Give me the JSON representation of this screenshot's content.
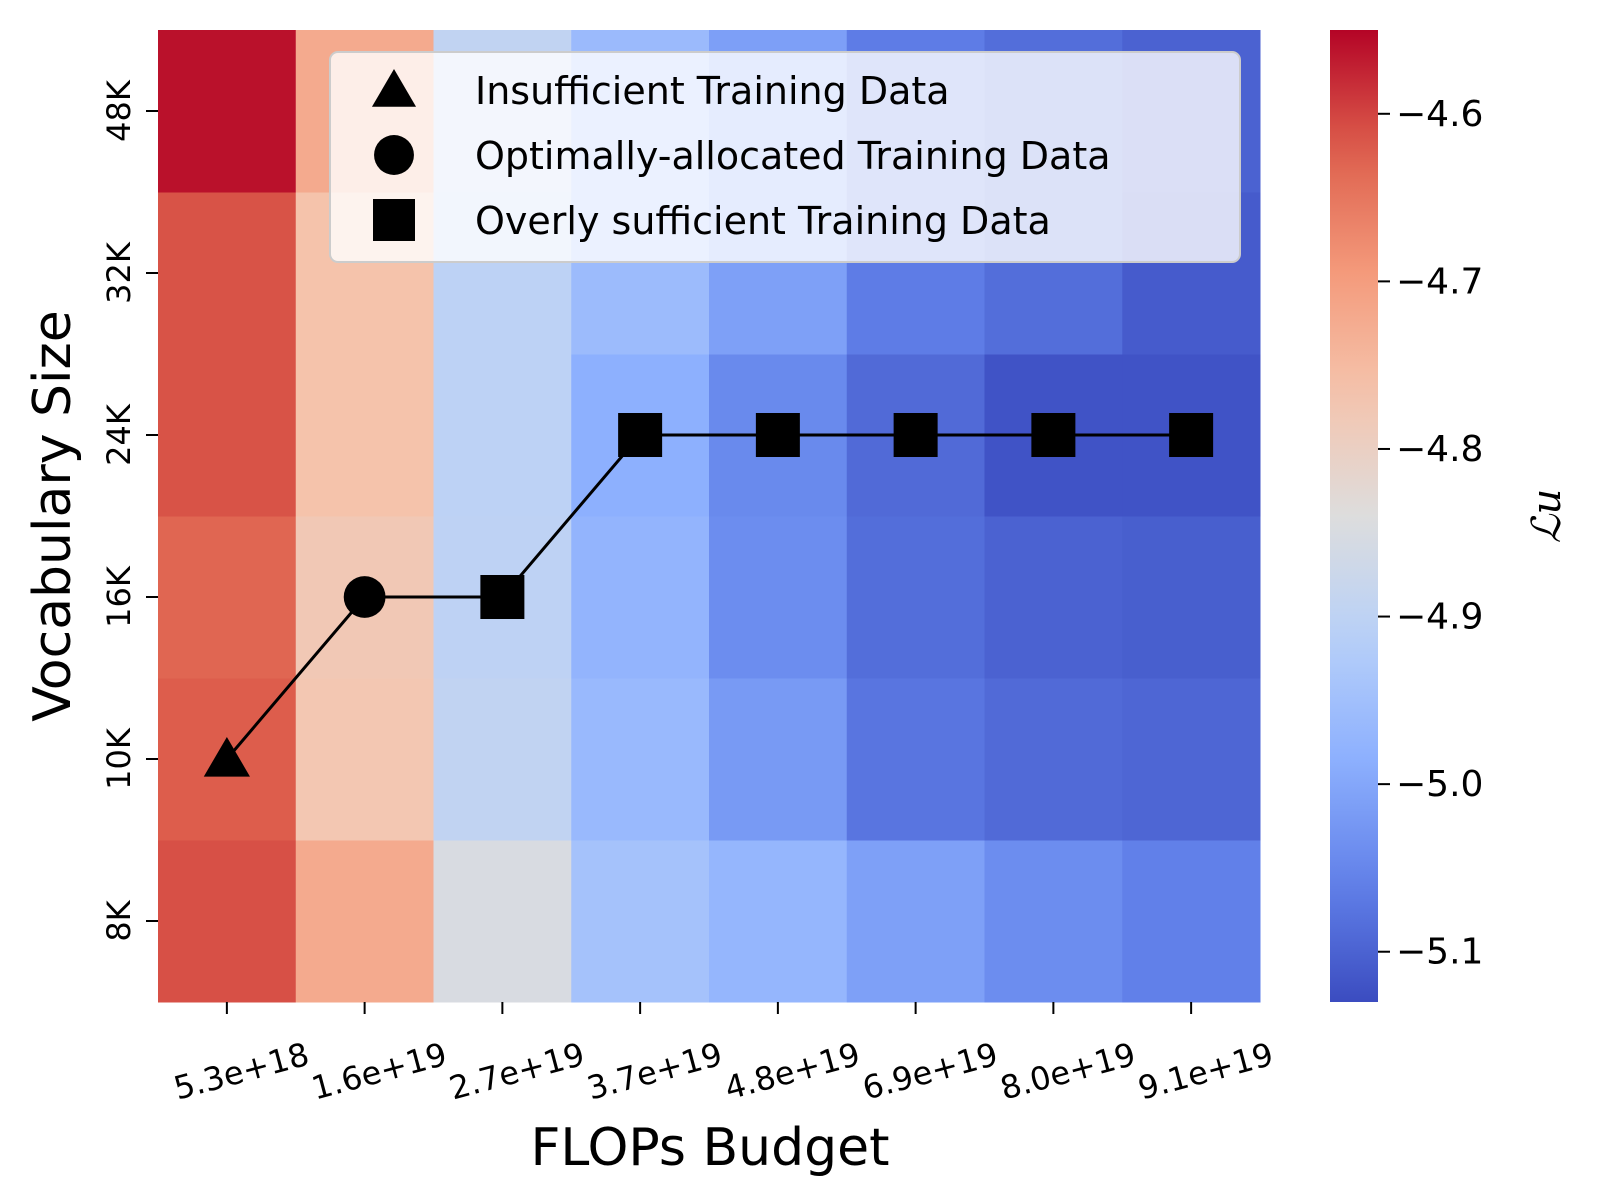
{
  "chart_data": {
    "type": "heatmap",
    "title": "",
    "xlabel": "FLOPs Budget",
    "ylabel": "Vocabulary Size",
    "x_categories": [
      "5.3e+18",
      "1.6e+19",
      "2.7e+19",
      "3.7e+19",
      "4.8e+19",
      "6.9e+19",
      "8.0e+19",
      "9.1e+19"
    ],
    "y_categories": [
      "8K",
      "10K",
      "16K",
      "24K",
      "32K",
      "48K"
    ],
    "values": [
      [
        -4.61,
        -4.722,
        -4.85,
        -4.945,
        -4.972,
        -5.01,
        -5.04,
        -5.06
      ],
      [
        -4.62,
        -4.775,
        -4.895,
        -4.965,
        -5.02,
        -5.075,
        -5.09,
        -5.095
      ],
      [
        -4.63,
        -4.78,
        -4.9,
        -4.975,
        -5.04,
        -5.085,
        -5.1,
        -5.105
      ],
      [
        -4.612,
        -4.765,
        -4.903,
        -4.985,
        -5.045,
        -5.09,
        -5.12,
        -5.12
      ],
      [
        -4.612,
        -4.765,
        -4.903,
        -4.96,
        -5.01,
        -5.065,
        -5.085,
        -5.11
      ],
      [
        -4.56,
        -4.722,
        -4.895,
        -4.962,
        -5.012,
        -5.065,
        -5.085,
        -5.1
      ]
    ],
    "colorbar": {
      "label": "ℒu",
      "colormap": "coolwarm",
      "vmin": -5.13,
      "vmax": -4.55,
      "ticks": [
        "−4.6",
        "−4.7",
        "−4.8",
        "−4.9",
        "−5.0",
        "−5.1"
      ],
      "tick_values": [
        -4.6,
        -4.7,
        -4.8,
        -4.9,
        -5.0,
        -5.1
      ]
    },
    "series": [
      {
        "x": [
          "5.3e+18",
          "1.6e+19",
          "2.7e+19",
          "3.7e+19",
          "4.8e+19",
          "6.9e+19",
          "8.0e+19",
          "9.1e+19"
        ],
        "y": [
          "10K",
          "16K",
          "16K",
          "24K",
          "24K",
          "24K",
          "24K",
          "24K"
        ],
        "markers": [
          "triangle",
          "circle",
          "square",
          "square",
          "square",
          "square",
          "square",
          "square"
        ],
        "color": "#000000"
      }
    ],
    "legend": {
      "placement": "top-right",
      "entries": [
        {
          "marker": "triangle",
          "label": "Insufficient Training Data"
        },
        {
          "marker": "circle",
          "label": "Optimally-allocated Training Data"
        },
        {
          "marker": "square",
          "label": "Overly sufficient Training Data"
        }
      ]
    },
    "grid": false
  }
}
